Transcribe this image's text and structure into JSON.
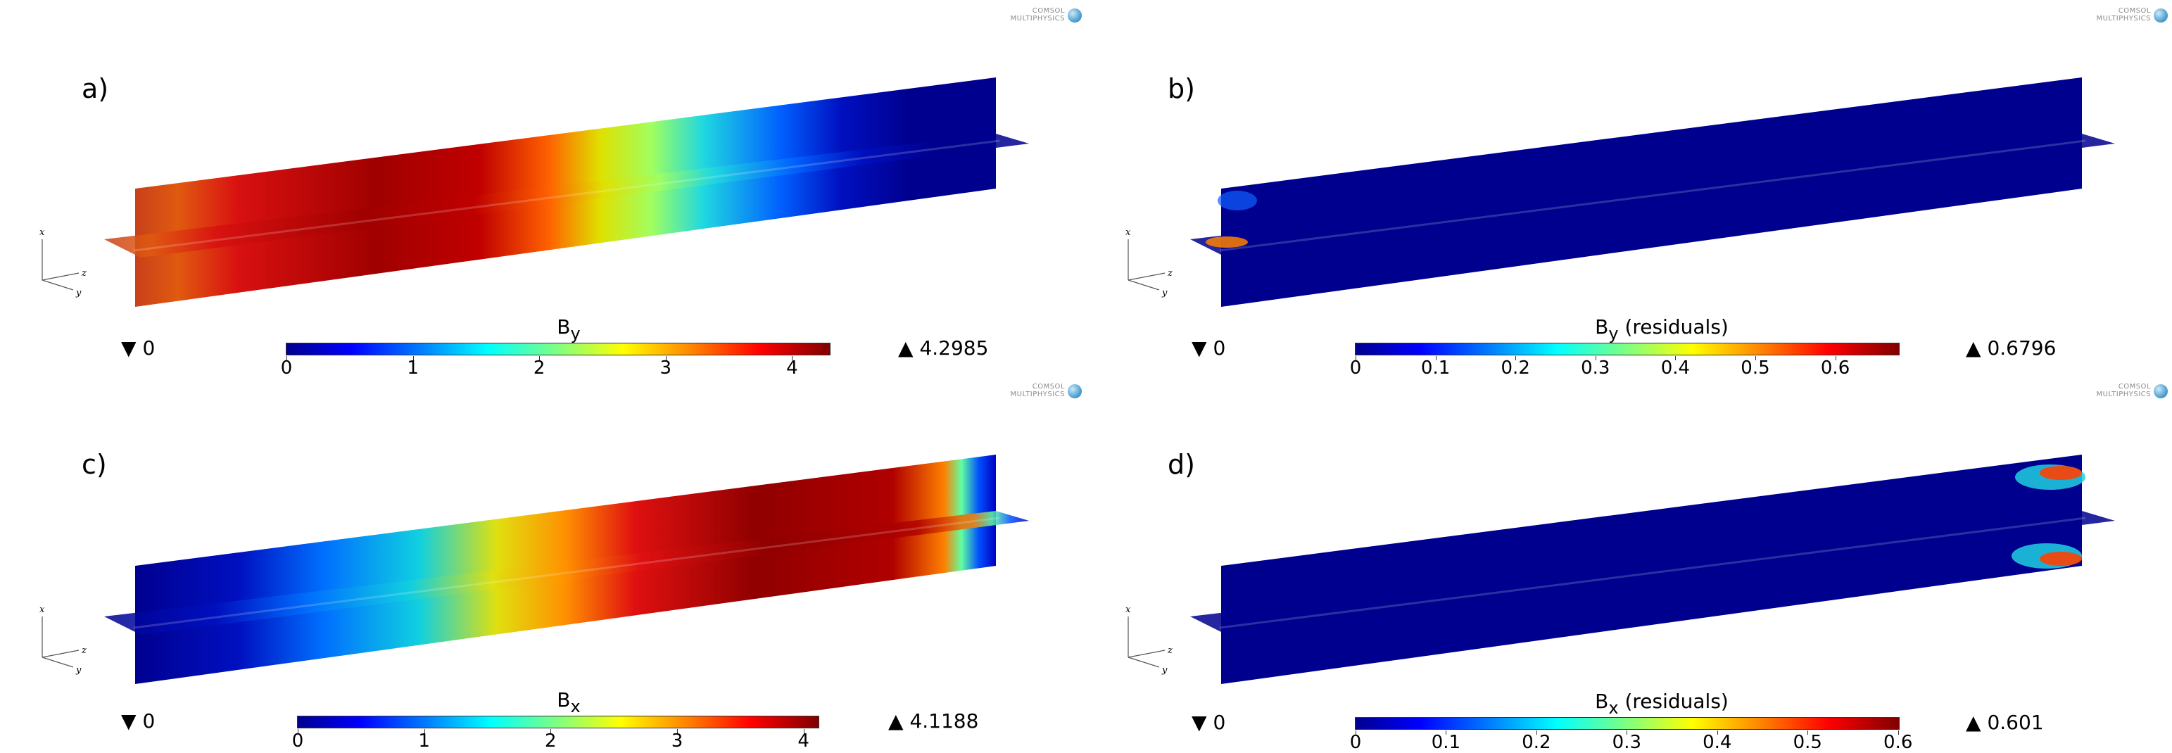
{
  "logo_text_line1": "COMSOL",
  "logo_text_line2": "MULTIPHYSICS",
  "axes": {
    "x": "x",
    "y": "y",
    "z": "z"
  },
  "panels": [
    {
      "label": "a)",
      "quantity_symbol": "B",
      "quantity_sub": "y",
      "quantity_suffix": "",
      "min_value": "0",
      "max_value": "4.2985",
      "ticks": [
        "0",
        "1",
        "2",
        "3",
        "4"
      ],
      "tick_values": [
        0,
        1,
        2,
        3,
        4
      ],
      "range_max": 4.2985,
      "field": "a"
    },
    {
      "label": "b)",
      "quantity_symbol": "B",
      "quantity_sub": "y",
      "quantity_suffix": " (residuals)",
      "min_value": "0",
      "max_value": "0.6796",
      "ticks": [
        "0",
        "0.1",
        "0.2",
        "0.3",
        "0.4",
        "0.5",
        "0.6"
      ],
      "tick_values": [
        0,
        0.1,
        0.2,
        0.3,
        0.4,
        0.5,
        0.6
      ],
      "range_max": 0.6796,
      "field": "b"
    },
    {
      "label": "c)",
      "quantity_symbol": "B",
      "quantity_sub": "x",
      "quantity_suffix": "",
      "min_value": "0",
      "max_value": "4.1188",
      "ticks": [
        "0",
        "1",
        "2",
        "3",
        "4"
      ],
      "tick_values": [
        0,
        1,
        2,
        3,
        4
      ],
      "range_max": 4.1188,
      "field": "c"
    },
    {
      "label": "d)",
      "quantity_symbol": "B",
      "quantity_sub": "x",
      "quantity_suffix": " (residuals)",
      "min_value": "0",
      "max_value": "0.601",
      "ticks": [
        "0",
        "0.1",
        "0.2",
        "0.3",
        "0.4",
        "0.5",
        "0.6"
      ],
      "tick_values": [
        0,
        0.1,
        0.2,
        0.3,
        0.4,
        0.5,
        0.6
      ],
      "range_max": 0.601,
      "field": "d"
    }
  ],
  "colors": {
    "dark_blue": "#00008f",
    "blue": "#0000ff",
    "cyan": "#00ffff",
    "yellow": "#ffff00",
    "red": "#ff0000",
    "dark_red": "#800000"
  }
}
